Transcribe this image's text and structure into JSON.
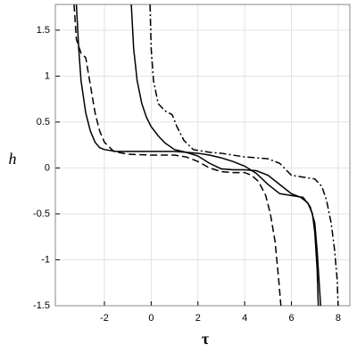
{
  "chart_data": {
    "type": "line",
    "x_label": "τ",
    "y_label": "h",
    "xlim": [
      -4.1,
      8.5
    ],
    "ylim": [
      -1.5,
      1.78
    ],
    "xticks": [
      -2,
      0,
      2,
      4,
      6,
      8
    ],
    "yticks": [
      -1.5,
      -1,
      -0.5,
      0,
      0.5,
      1,
      1.5
    ],
    "grid": true,
    "series": [
      {
        "color": "#000000",
        "dash": "solid",
        "x": [
          -3.2,
          -3.1,
          -3.0,
          -2.8,
          -2.6,
          -2.4,
          -2.2,
          -2.0,
          -1.5,
          -1,
          0,
          1,
          1.5,
          2,
          2.5,
          3,
          3.5,
          4,
          4.5,
          5,
          5.5,
          6,
          6.4,
          6.7,
          6.9,
          7.0,
          7.1,
          7.15
        ],
        "values": [
          1.78,
          1.3,
          0.95,
          0.6,
          0.4,
          0.28,
          0.22,
          0.2,
          0.18,
          0.18,
          0.18,
          0.18,
          0.17,
          0.13,
          0.05,
          -0.01,
          -0.02,
          -0.02,
          -0.03,
          -0.08,
          -0.18,
          -0.28,
          -0.32,
          -0.38,
          -0.5,
          -0.7,
          -1.1,
          -1.5
        ]
      },
      {
        "color": "#000000",
        "dash": "solid",
        "x": [
          -0.85,
          -0.75,
          -0.6,
          -0.4,
          -0.2,
          0,
          0.3,
          0.6,
          1,
          1.5,
          2,
          2.5,
          3,
          3.5,
          4,
          4.5,
          5,
          5.5,
          6,
          6.5,
          6.8,
          7.0,
          7.1,
          7.2,
          7.25
        ],
        "values": [
          1.78,
          1.3,
          0.95,
          0.7,
          0.55,
          0.45,
          0.35,
          0.27,
          0.2,
          0.17,
          0.16,
          0.14,
          0.11,
          0.07,
          0.02,
          -0.06,
          -0.18,
          -0.28,
          -0.3,
          -0.32,
          -0.42,
          -0.6,
          -0.9,
          -1.3,
          -1.5
        ]
      },
      {
        "color": "#000000",
        "dash": "dashed",
        "x": [
          -3.3,
          -3.2,
          -3.0,
          -2.8,
          -2.6,
          -2.4,
          -2.2,
          -2.0,
          -1.6,
          -1.0,
          0,
          1,
          1.5,
          2,
          2.5,
          3,
          3.5,
          4,
          4.3,
          4.6,
          4.9,
          5.1,
          5.3,
          5.45,
          5.55
        ],
        "values": [
          1.78,
          1.4,
          1.25,
          1.2,
          0.9,
          0.6,
          0.4,
          0.28,
          0.18,
          0.15,
          0.14,
          0.14,
          0.12,
          0.07,
          0.0,
          -0.04,
          -0.05,
          -0.05,
          -0.08,
          -0.15,
          -0.3,
          -0.5,
          -0.8,
          -1.2,
          -1.5
        ]
      },
      {
        "color": "#000000",
        "dash": "dashdot",
        "x": [
          -0.05,
          0.0,
          0.1,
          0.3,
          0.6,
          0.9,
          1.1,
          1.4,
          1.8,
          2.5,
          3,
          4,
          5,
          5.5,
          6,
          6.5,
          7,
          7.3,
          7.5,
          7.7,
          7.85,
          7.95,
          8.0
        ],
        "values": [
          1.78,
          1.3,
          0.95,
          0.7,
          0.62,
          0.58,
          0.45,
          0.3,
          0.2,
          0.17,
          0.16,
          0.12,
          0.1,
          0.05,
          -0.08,
          -0.1,
          -0.12,
          -0.2,
          -0.35,
          -0.6,
          -0.9,
          -1.2,
          -1.5
        ]
      }
    ]
  }
}
